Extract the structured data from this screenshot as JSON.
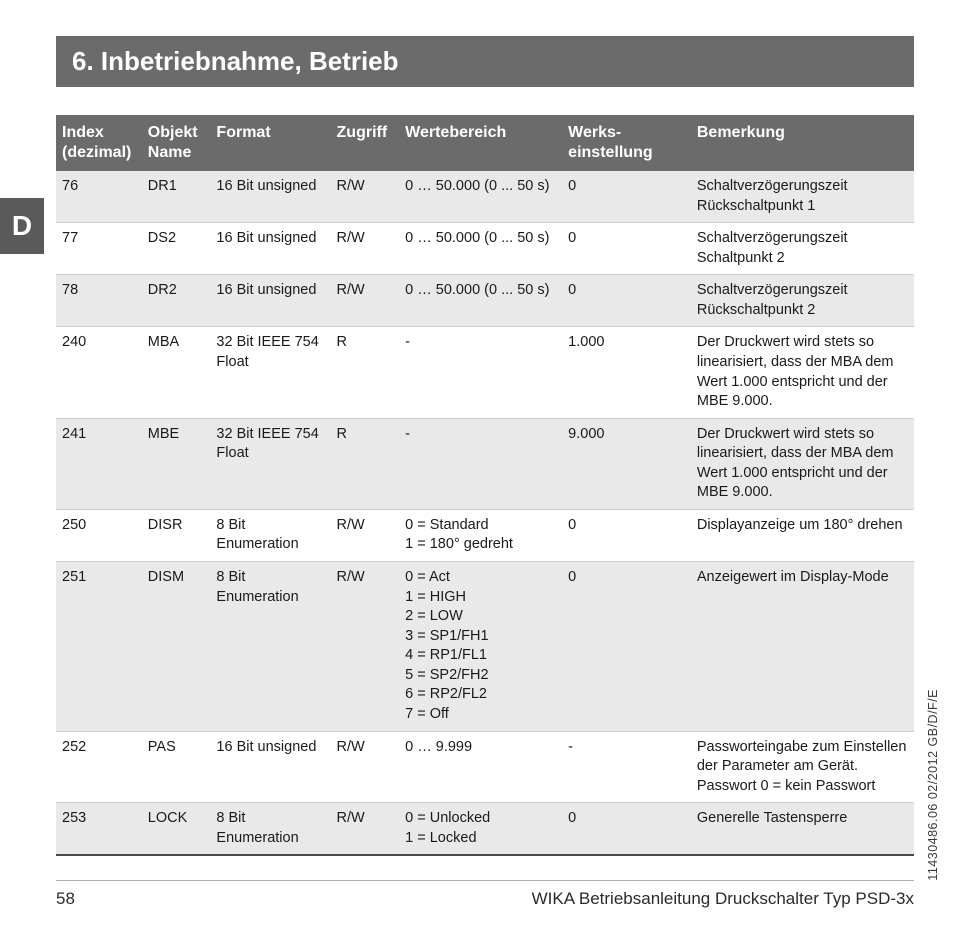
{
  "title": "6. Inbetriebnahme, Betrieb",
  "lang_tab": "D",
  "columns": {
    "index": "Index (dezimal)",
    "name": "Objekt Name",
    "format": "Format",
    "access": "Zugriff",
    "range": "Wertebereich",
    "default": "Werks-\neinstellung",
    "remark": "Bemerkung"
  },
  "rows": [
    {
      "alt": true,
      "index": "76",
      "name": "DR1",
      "format": "16 Bit unsigned",
      "access": "R/W",
      "range": "0 … 50.000 (0 ... 50 s)",
      "default": "0",
      "remark": "Schaltverzögerungszeit Rückschaltpunkt 1"
    },
    {
      "alt": false,
      "index": "77",
      "name": "DS2",
      "format": "16 Bit unsigned",
      "access": "R/W",
      "range": "0 … 50.000 (0 ... 50 s)",
      "default": "0",
      "remark": "Schaltverzögerungszeit Schaltpunkt 2"
    },
    {
      "alt": true,
      "index": "78",
      "name": "DR2",
      "format": "16 Bit unsigned",
      "access": "R/W",
      "range": "0 … 50.000 (0 ... 50 s)",
      "default": "0",
      "remark": "Schaltverzögerungszeit Rückschaltpunkt 2"
    },
    {
      "alt": false,
      "index": "240",
      "name": "MBA",
      "format": "32 Bit IEEE 754 Float",
      "access": "R",
      "range": "-",
      "default": "1.000",
      "remark": "Der Druckwert wird stets so linearisiert, dass der MBA dem Wert 1.000 entspricht und der MBE 9.000."
    },
    {
      "alt": true,
      "index": "241",
      "name": "MBE",
      "format": "32 Bit IEEE 754 Float",
      "access": "R",
      "range": "-",
      "default": "9.000",
      "remark": "Der Druckwert wird stets so linearisiert, dass der MBA dem Wert 1.000 entspricht und der MBE 9.000."
    },
    {
      "alt": false,
      "index": "250",
      "name": "DISR",
      "format": "8 Bit Enumeration",
      "access": "R/W",
      "range": "0 = Standard\n1 = 180° gedreht",
      "default": "0",
      "remark": "Displayanzeige um 180° drehen"
    },
    {
      "alt": true,
      "index": "251",
      "name": "DISM",
      "format": "8 Bit Enumeration",
      "access": "R/W",
      "range": "0 = Act\n1 = HIGH\n2 = LOW\n3 = SP1/FH1\n4 = RP1/FL1\n5 = SP2/FH2\n6 = RP2/FL2\n7 = Off",
      "default": "0",
      "remark": "Anzeigewert im Display-Mode"
    },
    {
      "alt": false,
      "index": "252",
      "name": "PAS",
      "format": "16 Bit unsigned",
      "access": "R/W",
      "range": "0 … 9.999",
      "default": "-",
      "remark": "Passworteingabe zum Einstellen der Parameter am Gerät. Passwort 0 = kein Passwort"
    },
    {
      "alt": true,
      "index": "253",
      "name": "LOCK",
      "format": "8 Bit Enumeration",
      "access": "R/W",
      "range": "0 = Unlocked\n1 = Locked",
      "default": "0",
      "remark": "Generelle Tastensperre"
    }
  ],
  "footer": {
    "page": "58",
    "doc_title": "WIKA Betriebsanleitung Druckschalter Typ PSD-3x"
  },
  "doc_code": "11430486.06 02/2012 GB/D/F/E",
  "style": {
    "header_bg": "#6b6b6b",
    "header_fg": "#ffffff",
    "row_alt_bg": "#e9e9e9",
    "row_border": "#cfcfcf",
    "table_bottom_border": "#4a4a4a",
    "body_bg": "#ffffff",
    "text_color": "#1a1a1a",
    "title_fontsize": 26,
    "th_fontsize": 16,
    "td_fontsize": 14.5,
    "footer_fontsize": 17,
    "code_fontsize": 12.5
  }
}
